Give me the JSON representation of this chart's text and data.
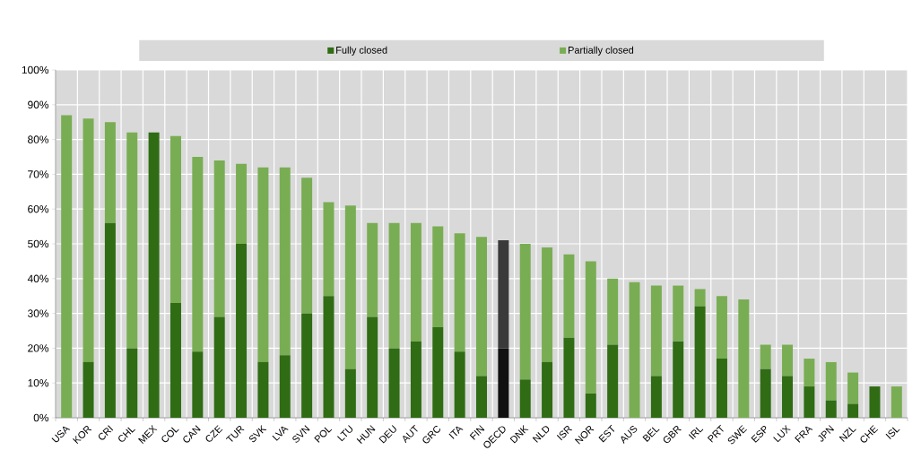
{
  "chart_data": {
    "type": "bar",
    "stacked": true,
    "categories": [
      "USA",
      "KOR",
      "CRI",
      "CHL",
      "MEX",
      "COL",
      "CAN",
      "CZE",
      "TUR",
      "SVK",
      "LVA",
      "SVN",
      "POL",
      "LTU",
      "HUN",
      "DEU",
      "AUT",
      "GRC",
      "ITA",
      "FIN",
      "OECD",
      "DNK",
      "NLD",
      "ISR",
      "NOR",
      "EST",
      "AUS",
      "BEL",
      "GBR",
      "IRL",
      "PRT",
      "SWE",
      "ESP",
      "LUX",
      "FRA",
      "JPN",
      "NZL",
      "CHE",
      "ISL"
    ],
    "series": [
      {
        "name": "Fully closed",
        "color": "#2f6c14",
        "colors": [
          "#2f6c14",
          "#2f6c14",
          "#2f6c14",
          "#2f6c14",
          "#2f6c14",
          "#2f6c14",
          "#2f6c14",
          "#2f6c14",
          "#2f6c14",
          "#2f6c14",
          "#2f6c14",
          "#2f6c14",
          "#2f6c14",
          "#2f6c14",
          "#2f6c14",
          "#2f6c14",
          "#2f6c14",
          "#2f6c14",
          "#2f6c14",
          "#2f6c14",
          "#111111",
          "#2f6c14",
          "#2f6c14",
          "#2f6c14",
          "#2f6c14",
          "#2f6c14",
          "#2f6c14",
          "#2f6c14",
          "#2f6c14",
          "#2f6c14",
          "#2f6c14",
          "#2f6c14",
          "#2f6c14",
          "#2f6c14",
          "#2f6c14",
          "#2f6c14",
          "#2f6c14",
          "#2f6c14",
          "#2f6c14"
        ],
        "values": [
          0,
          16,
          56,
          20,
          82,
          33,
          19,
          29,
          50,
          16,
          18,
          30,
          35,
          14,
          29,
          20,
          22,
          26,
          19,
          12,
          20,
          11,
          16,
          23,
          7,
          21,
          0,
          12,
          22,
          32,
          17,
          0,
          14,
          12,
          9,
          5,
          4,
          9,
          0
        ]
      },
      {
        "name": "Partially closed",
        "color": "#79ad53",
        "colors": [
          "#79ad53",
          "#79ad53",
          "#79ad53",
          "#79ad53",
          "#79ad53",
          "#79ad53",
          "#79ad53",
          "#79ad53",
          "#79ad53",
          "#79ad53",
          "#79ad53",
          "#79ad53",
          "#79ad53",
          "#79ad53",
          "#79ad53",
          "#79ad53",
          "#79ad53",
          "#79ad53",
          "#79ad53",
          "#79ad53",
          "#3a3a3a",
          "#79ad53",
          "#79ad53",
          "#79ad53",
          "#79ad53",
          "#79ad53",
          "#79ad53",
          "#79ad53",
          "#79ad53",
          "#79ad53",
          "#79ad53",
          "#79ad53",
          "#79ad53",
          "#79ad53",
          "#79ad53",
          "#79ad53",
          "#79ad53",
          "#79ad53",
          "#79ad53"
        ],
        "values": [
          87,
          70,
          29,
          62,
          0,
          48,
          56,
          45,
          23,
          56,
          54,
          39,
          27,
          47,
          27,
          36,
          34,
          29,
          34,
          40,
          31,
          39,
          33,
          24,
          38,
          19,
          39,
          26,
          16,
          5,
          18,
          34,
          7,
          9,
          8,
          11,
          9,
          0,
          9
        ]
      }
    ],
    "ylim": [
      0,
      100
    ],
    "yticks": [
      {
        "value": 0,
        "label": "0%"
      },
      {
        "value": 10,
        "label": "10%"
      },
      {
        "value": 20,
        "label": "20%"
      },
      {
        "value": 30,
        "label": "30%"
      },
      {
        "value": 40,
        "label": "40%"
      },
      {
        "value": 50,
        "label": "50%"
      },
      {
        "value": 60,
        "label": "60%"
      },
      {
        "value": 70,
        "label": "70%"
      },
      {
        "value": 80,
        "label": "80%"
      },
      {
        "value": 90,
        "label": "90%"
      },
      {
        "value": 100,
        "label": "100%"
      }
    ],
    "grid": true,
    "legend": "top"
  }
}
